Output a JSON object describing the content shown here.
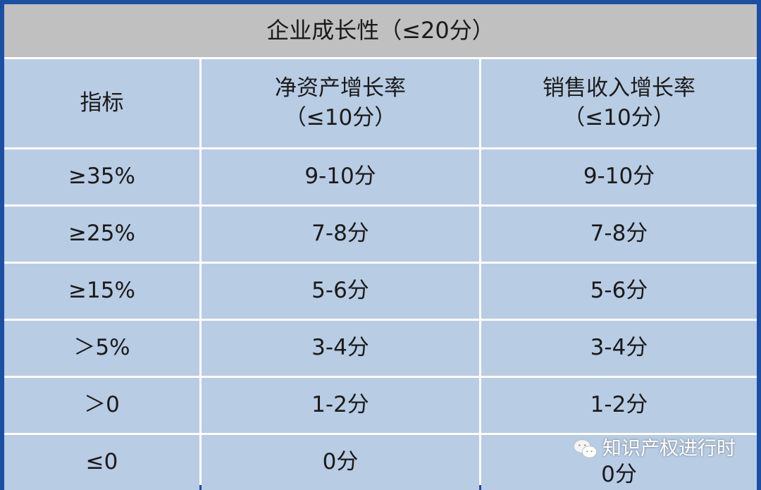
{
  "title": "企业成长性（≤20分）",
  "headers": {
    "indicator": "指标",
    "net_assets": [
      "净资产增长率",
      "（≤10分）"
    ],
    "sales": [
      "销售收入增长率",
      "（≤10分）"
    ]
  },
  "rows": [
    {
      "indicator": "≥35%",
      "net_assets": "9-10分",
      "sales": "9-10分"
    },
    {
      "indicator": "≥25%",
      "net_assets": "7-8分",
      "sales": "7-8分"
    },
    {
      "indicator": "≥15%",
      "net_assets": "5-6分",
      "sales": "5-6分"
    },
    {
      "indicator": "＞5%",
      "net_assets": "3-4分",
      "sales": "3-4分"
    },
    {
      "indicator": "＞0",
      "net_assets": "1-2分",
      "sales": "1-2分"
    },
    {
      "indicator": "≤0",
      "net_assets": "0分",
      "sales": "0分"
    }
  ],
  "watermark": {
    "icon": "wechat-icon",
    "text": "知识产权进行时"
  },
  "colors": {
    "border": "#1b4fa3",
    "title_bg": "#c0c0c0",
    "cell_bg": "#b8cce4"
  }
}
